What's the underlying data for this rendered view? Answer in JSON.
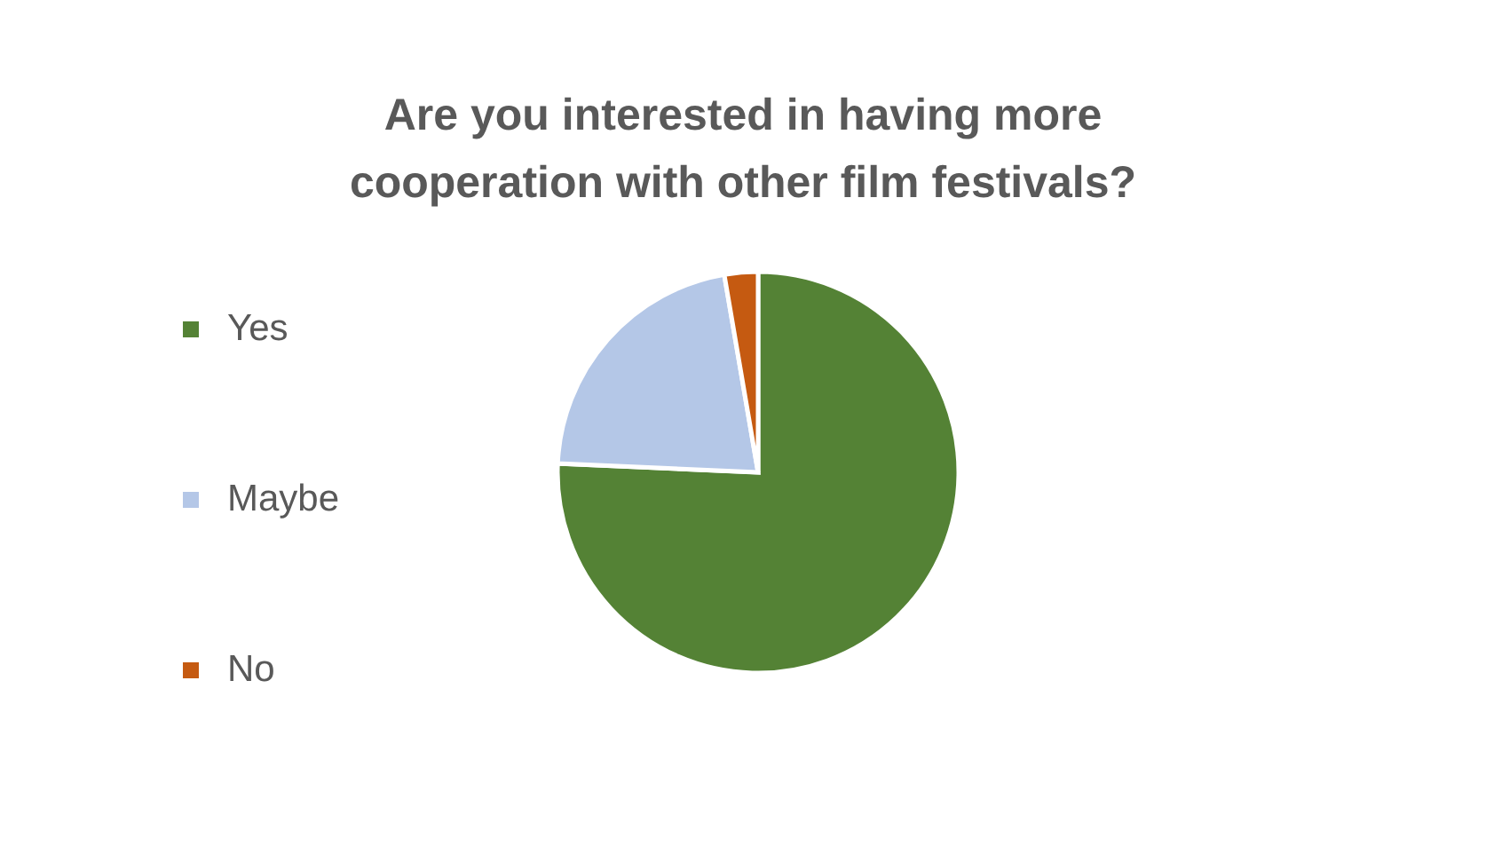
{
  "chart_data": {
    "type": "pie",
    "title": "Are you interested in having more cooperation with other film festivals?",
    "categories": [
      "Yes",
      "Maybe",
      "No"
    ],
    "values": [
      75.7,
      21.6,
      2.7
    ],
    "colors": [
      "#548235",
      "#b4c7e7",
      "#c55a11"
    ],
    "legend": "left"
  }
}
